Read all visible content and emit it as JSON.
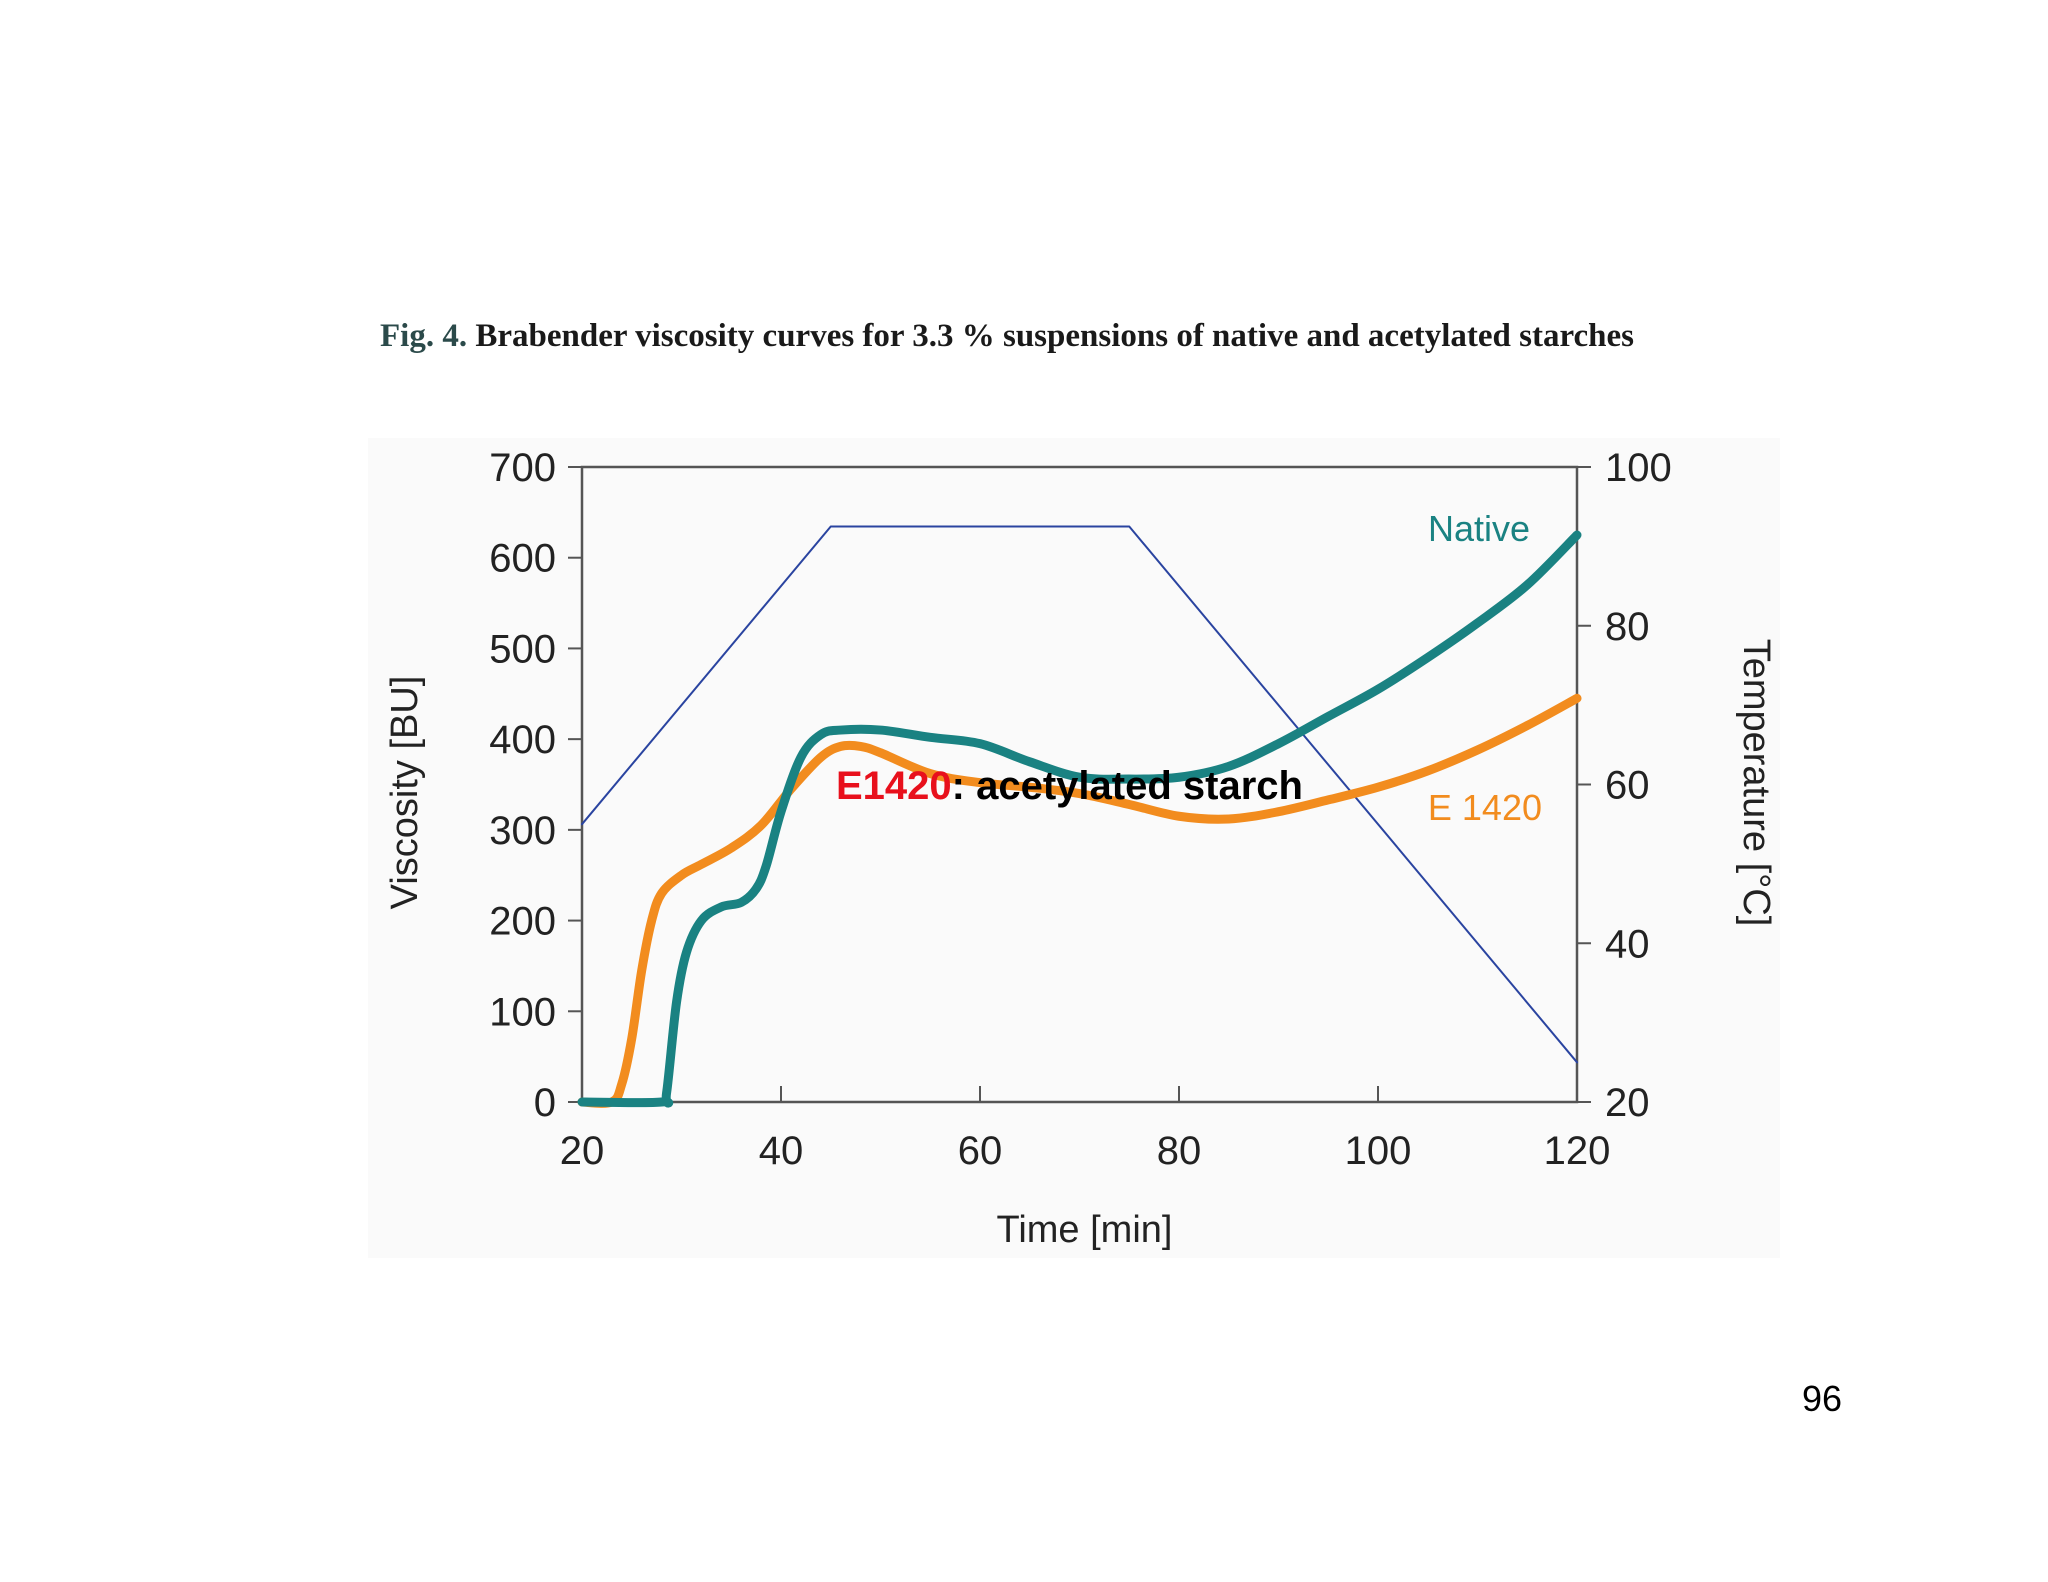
{
  "caption": {
    "fig_label": "Fig. 4.",
    "text": "Brabender viscosity curves for 3.3 % suspensions of native and acetylated starches"
  },
  "annotation": {
    "code": "E1420",
    "text": ": acetylated starch"
  },
  "page_number": "96",
  "chart_data": {
    "type": "line",
    "title": "",
    "xlabel": "Time [min]",
    "ylabel": "Viscosity [BU]",
    "y2label": "Temperature [°C]",
    "xlim": [
      20,
      120
    ],
    "ylim": [
      0,
      700
    ],
    "y2lim": [
      20,
      100
    ],
    "xticks": [
      20,
      40,
      60,
      80,
      100,
      120
    ],
    "yticks": [
      0,
      100,
      200,
      300,
      400,
      500,
      600,
      700
    ],
    "y2ticks": [
      20,
      40,
      60,
      80,
      100
    ],
    "grid": false,
    "colors": {
      "native": "#1a8282",
      "e1420": "#f28c1e",
      "temperature": "#2a44a0"
    },
    "series": [
      {
        "name": "Native",
        "axis": "left",
        "x": [
          20,
          28,
          28.5,
          29.5,
          30.5,
          32,
          34,
          36,
          37.5,
          38.5,
          40,
          42,
          44,
          46,
          50,
          55,
          60,
          65,
          70,
          75,
          80,
          85,
          90,
          95,
          100,
          105,
          110,
          115,
          120
        ],
        "y": [
          0,
          0,
          10,
          110,
          165,
          200,
          215,
          220,
          235,
          260,
          320,
          380,
          405,
          410,
          410,
          402,
          395,
          375,
          358,
          356,
          358,
          370,
          395,
          425,
          455,
          490,
          528,
          570,
          625
        ]
      },
      {
        "name": "E 1420",
        "axis": "left",
        "x": [
          20,
          23,
          24,
          25,
          26,
          27,
          28,
          30,
          32,
          35,
          38,
          41,
          44,
          46,
          48,
          50,
          55,
          60,
          65,
          70,
          75,
          80,
          85,
          90,
          95,
          100,
          105,
          110,
          115,
          120
        ],
        "y": [
          0,
          0,
          20,
          70,
          145,
          200,
          230,
          250,
          262,
          280,
          305,
          345,
          380,
          392,
          392,
          385,
          362,
          352,
          347,
          340,
          328,
          315,
          312,
          320,
          333,
          347,
          365,
          388,
          415,
          445
        ]
      },
      {
        "name": "Temperature",
        "axis": "right",
        "x": [
          20,
          45,
          75,
          120
        ],
        "y": [
          55,
          92.5,
          92.5,
          25
        ]
      }
    ],
    "annotations": [
      {
        "text": "Native",
        "series": "Native"
      },
      {
        "text": "E 1420",
        "series": "E 1420"
      }
    ]
  }
}
